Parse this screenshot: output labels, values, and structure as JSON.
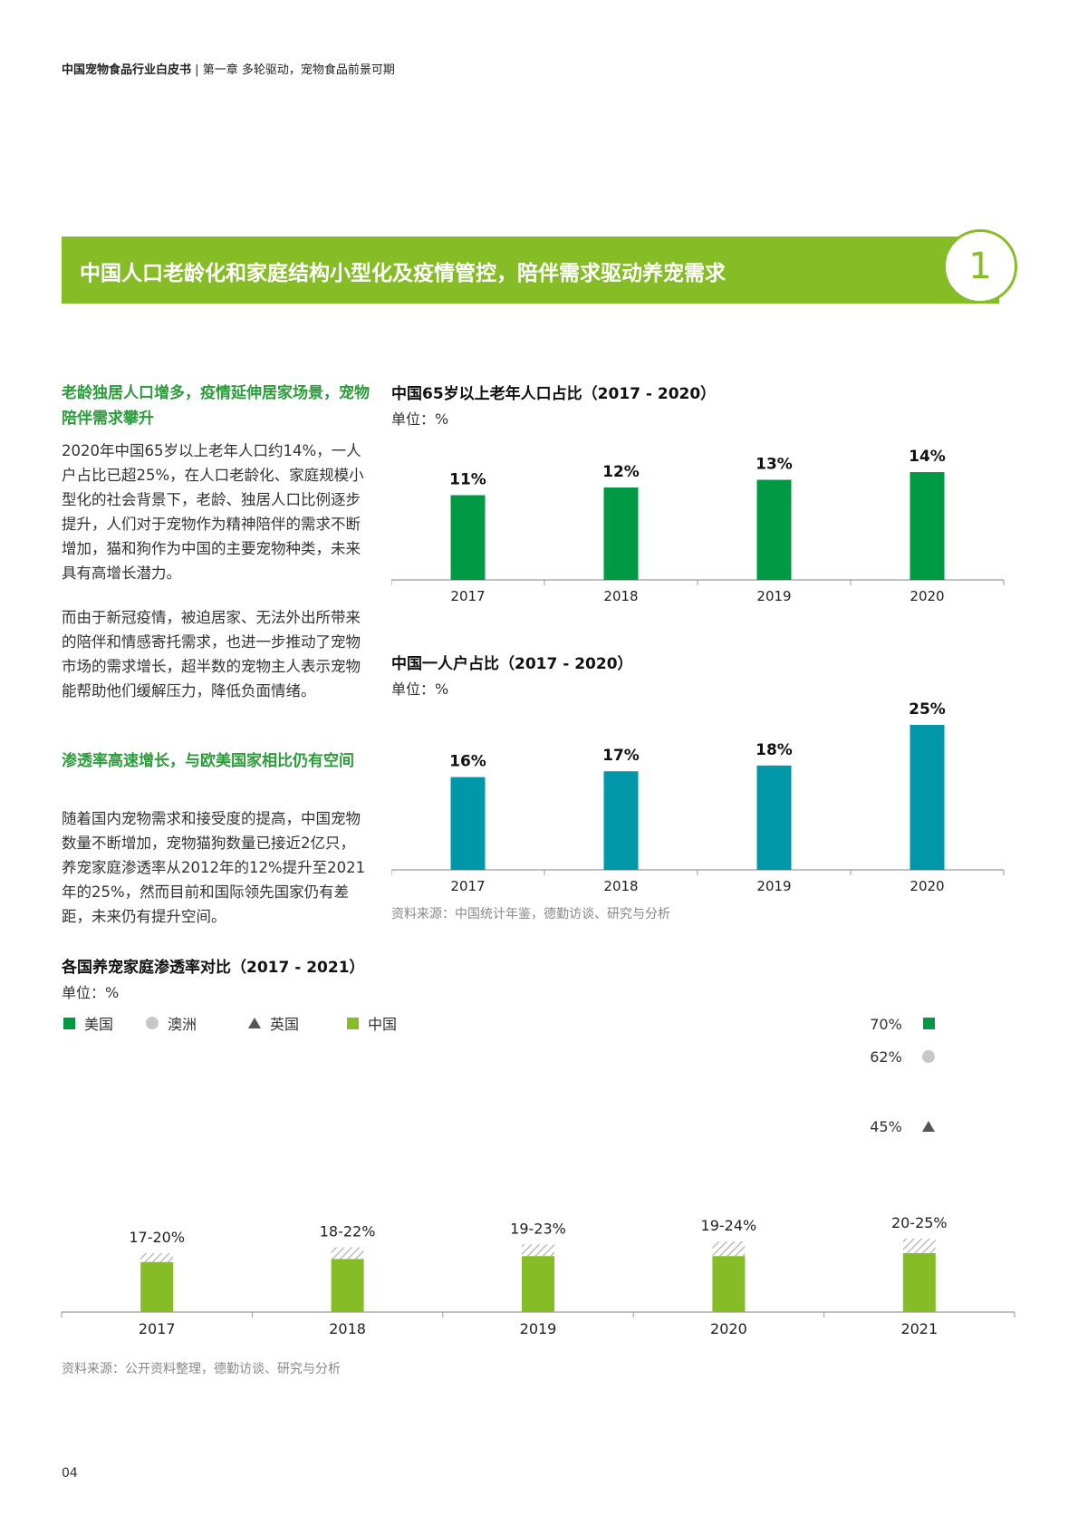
{
  "header": {
    "title": "中国宠物食品行业白皮书",
    "separator": "|",
    "chapter": "第一章 多轮驱动，宠物食品前景可期"
  },
  "banner": {
    "title": "中国人口老龄化和家庭结构小型化及疫情管控，陪伴需求驱动养宠需求",
    "number": "1",
    "color": "#86bc25"
  },
  "left": {
    "heading1": "老龄独居人口增多，疫情延伸居家场景，宠物陪伴需求攀升",
    "para1": "2020年中国65岁以上老年人口约14%，一人户占比已超25%，在人口老龄化、家庭规模小型化的社会背景下，老龄、独居人口比例逐步提升，人们对于宠物作为精神陪伴的需求不断增加，猫和狗作为中国的主要宠物种类，未来具有高增长潜力。",
    "para2": "而由于新冠疫情，被迫居家、无法外出所带来的陪伴和情感寄托需求，也进一步推动了宠物市场的需求增长，超半数的宠物主人表示宠物能帮助他们缓解压力，降低负面情绪。",
    "heading2": "渗透率高速增长，与欧美国家相比仍有空间",
    "para3": "随着国内宠物需求和接受度的提高，中国宠物数量不断增加，宠物猫狗数量已接近2亿只，养宠家庭渗透率从2012年的12%提升至2021年的25%，然而目前和国际领先国家仍有差距，未来仍有提升空间。"
  },
  "charts": {
    "elderly": {
      "title": "中国65岁以上老年人口占比（2017 - 2020）",
      "unit": "单位：%"
    },
    "single": {
      "title": "中国一人户占比（2017 - 2020）",
      "unit": "单位：%"
    },
    "source1": "资料来源：中国统计年鉴，德勤访谈、研究与分析",
    "penetration": {
      "title": "各国养宠家庭渗透率对比（2017 - 2021）",
      "unit": "单位：%",
      "legend": [
        "美国",
        "澳洲",
        "英国",
        "中国"
      ]
    },
    "source2": "资料来源：公开资料整理，德勤访谈、研究与分析"
  },
  "chart_data": [
    {
      "type": "bar",
      "categories": [
        "2017",
        "2018",
        "2019",
        "2020"
      ],
      "values": [
        11,
        12,
        13,
        14
      ],
      "value_labels": [
        "11%",
        "12%",
        "13%",
        "14%"
      ],
      "color": "#009a44"
    },
    {
      "type": "bar",
      "categories": [
        "2017",
        "2018",
        "2019",
        "2020"
      ],
      "values": [
        16,
        17,
        18,
        25
      ],
      "value_labels": [
        "16%",
        "17%",
        "18%",
        "25%"
      ],
      "color": "#0097a9"
    },
    {
      "type": "bar",
      "categories": [
        "2017",
        "2018",
        "2019",
        "2020",
        "2021"
      ],
      "series": [
        {
          "name": "中国",
          "low": [
            17,
            18,
            19,
            19,
            20
          ],
          "high": [
            20,
            22,
            23,
            24,
            25
          ]
        }
      ],
      "range_labels": [
        "17-20%",
        "18-22%",
        "19-23%",
        "19-24%",
        "20-25%"
      ],
      "reference_2021": [
        {
          "name": "美国",
          "value": 70,
          "label": "70%",
          "marker": "square",
          "color": "#009a44"
        },
        {
          "name": "澳洲",
          "value": 62,
          "label": "62%",
          "marker": "circle",
          "color": "#c8c8c8"
        },
        {
          "name": "英国",
          "value": 45,
          "label": "45%",
          "marker": "triangle",
          "color": "#555555"
        }
      ],
      "color": "#86bc25"
    }
  ],
  "page_number": "04"
}
